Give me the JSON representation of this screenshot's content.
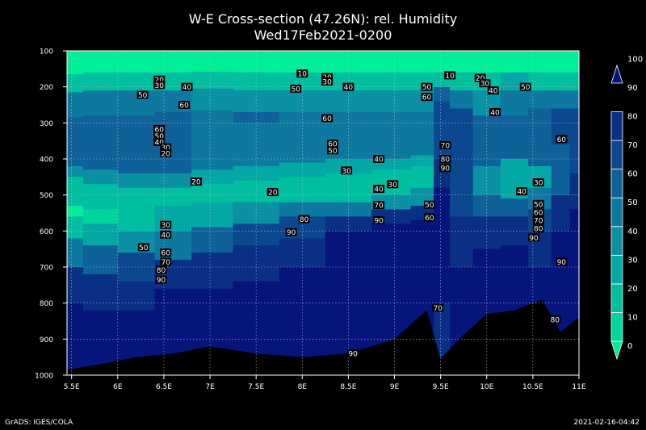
{
  "title_line1": "W-E Cross-section (47.26N): rel. Humidity",
  "title_line2": "Wed17Feb2021-0200",
  "footer_left": "GrADS: IGES/COLA",
  "footer_right": "2021-02-16-04:42",
  "chart_data": {
    "type": "heatmap",
    "title": "W-E Cross-section (47.26N): rel. Humidity",
    "subtitle": "Wed17Feb2021-0200",
    "xlim": [
      5.45,
      11.0
    ],
    "ylim": [
      100,
      1000
    ],
    "y_inverted": true,
    "x_ticks": [
      5.5,
      6,
      6.5,
      7,
      7.5,
      8,
      8.5,
      9,
      9.5,
      10,
      10.5,
      11
    ],
    "x_tick_labels": [
      "5.5E",
      "6E",
      "6.5E",
      "7E",
      "7.5E",
      "8E",
      "8.5E",
      "9E",
      "9.5E",
      "10E",
      "10.5E",
      "11E"
    ],
    "y_ticks": [
      100,
      200,
      300,
      400,
      500,
      600,
      700,
      800,
      900,
      1000
    ],
    "y_tick_labels": [
      "100",
      "200",
      "300",
      "400",
      "500",
      "600",
      "700",
      "800",
      "900",
      "1000"
    ],
    "grid": true,
    "colorbar": {
      "levels": [
        0,
        10,
        20,
        30,
        40,
        50,
        60,
        70,
        80,
        90,
        100
      ],
      "labels": [
        "0",
        "10",
        "20",
        "30",
        "40",
        "50",
        "60",
        "70",
        "80",
        "90",
        "100"
      ],
      "colors": [
        "#00ee98",
        "#00d69c",
        "#00bfa0",
        "#03a8a4",
        "#0a91a4",
        "#0d79a0",
        "#0e6199",
        "#0c488f",
        "#0a3085",
        "#05157c"
      ]
    },
    "terrain_color": "#000000",
    "columns": [
      {
        "x": 5.45,
        "bands": [
          [
            100,
            165,
            0
          ],
          [
            165,
            215,
            20
          ],
          [
            215,
            285,
            50
          ],
          [
            285,
            420,
            60
          ],
          [
            420,
            450,
            40
          ],
          [
            450,
            530,
            20
          ],
          [
            530,
            560,
            0
          ],
          [
            560,
            620,
            20
          ],
          [
            620,
            700,
            50
          ],
          [
            700,
            800,
            80
          ],
          [
            800,
            985,
            90
          ]
        ],
        "terrain": 985
      },
      {
        "x": 5.8,
        "bands": [
          [
            100,
            160,
            0
          ],
          [
            160,
            210,
            20
          ],
          [
            210,
            280,
            50
          ],
          [
            280,
            430,
            60
          ],
          [
            430,
            470,
            40
          ],
          [
            470,
            540,
            20
          ],
          [
            540,
            580,
            10
          ],
          [
            580,
            640,
            30
          ],
          [
            640,
            720,
            60
          ],
          [
            720,
            820,
            80
          ],
          [
            820,
            970,
            90
          ]
        ],
        "terrain": 970
      },
      {
        "x": 6.2,
        "bands": [
          [
            100,
            160,
            0
          ],
          [
            160,
            210,
            20
          ],
          [
            210,
            280,
            50
          ],
          [
            280,
            440,
            60
          ],
          [
            440,
            480,
            40
          ],
          [
            480,
            540,
            20
          ],
          [
            540,
            600,
            20
          ],
          [
            600,
            660,
            40
          ],
          [
            660,
            740,
            70
          ],
          [
            740,
            820,
            80
          ],
          [
            820,
            950,
            90
          ]
        ],
        "terrain": 950
      },
      {
        "x": 6.6,
        "bands": [
          [
            100,
            160,
            0
          ],
          [
            160,
            210,
            20
          ],
          [
            210,
            270,
            50
          ],
          [
            270,
            440,
            60
          ],
          [
            440,
            480,
            40
          ],
          [
            480,
            530,
            20
          ],
          [
            530,
            600,
            30
          ],
          [
            600,
            680,
            50
          ],
          [
            680,
            760,
            80
          ],
          [
            760,
            940,
            90
          ]
        ],
        "terrain": 940
      },
      {
        "x": 7.0,
        "bands": [
          [
            100,
            158,
            0
          ],
          [
            158,
            205,
            20
          ],
          [
            205,
            265,
            40
          ],
          [
            265,
            430,
            50
          ],
          [
            430,
            470,
            30
          ],
          [
            470,
            520,
            20
          ],
          [
            520,
            590,
            30
          ],
          [
            590,
            660,
            60
          ],
          [
            660,
            760,
            80
          ],
          [
            760,
            920,
            90
          ]
        ],
        "terrain": 920
      },
      {
        "x": 7.5,
        "bands": [
          [
            100,
            160,
            0
          ],
          [
            160,
            210,
            20
          ],
          [
            210,
            270,
            40
          ],
          [
            270,
            300,
            60
          ],
          [
            300,
            420,
            50
          ],
          [
            420,
            460,
            30
          ],
          [
            460,
            520,
            20
          ],
          [
            520,
            580,
            40
          ],
          [
            580,
            640,
            70
          ],
          [
            640,
            740,
            80
          ],
          [
            740,
            940,
            90
          ]
        ],
        "terrain": 940
      },
      {
        "x": 8.0,
        "bands": [
          [
            100,
            160,
            0
          ],
          [
            160,
            210,
            20
          ],
          [
            210,
            270,
            40
          ],
          [
            270,
            410,
            50
          ],
          [
            410,
            450,
            30
          ],
          [
            450,
            520,
            20
          ],
          [
            520,
            560,
            50
          ],
          [
            560,
            620,
            70
          ],
          [
            620,
            700,
            80
          ],
          [
            700,
            950,
            90
          ]
        ],
        "terrain": 950
      },
      {
        "x": 8.5,
        "bands": [
          [
            100,
            160,
            0
          ],
          [
            160,
            210,
            20
          ],
          [
            210,
            270,
            40
          ],
          [
            270,
            400,
            50
          ],
          [
            400,
            440,
            30
          ],
          [
            440,
            520,
            20
          ],
          [
            520,
            560,
            50
          ],
          [
            560,
            600,
            80
          ],
          [
            600,
            680,
            90
          ],
          [
            680,
            940,
            90
          ]
        ],
        "terrain": 940
      },
      {
        "x": 9.0,
        "bands": [
          [
            100,
            160,
            0
          ],
          [
            160,
            210,
            20
          ],
          [
            210,
            270,
            40
          ],
          [
            270,
            400,
            50
          ],
          [
            400,
            430,
            30
          ],
          [
            430,
            500,
            20
          ],
          [
            500,
            540,
            40
          ],
          [
            540,
            580,
            80
          ],
          [
            580,
            900,
            90
          ]
        ],
        "terrain": 900
      },
      {
        "x": 9.35,
        "bands": [
          [
            100,
            160,
            0
          ],
          [
            160,
            210,
            20
          ],
          [
            210,
            270,
            40
          ],
          [
            270,
            390,
            50
          ],
          [
            390,
            420,
            30
          ],
          [
            420,
            480,
            20
          ],
          [
            480,
            530,
            40
          ],
          [
            530,
            570,
            80
          ],
          [
            570,
            820,
            90
          ]
        ],
        "terrain": 820
      },
      {
        "x": 9.5,
        "bands": [
          [
            100,
            160,
            0
          ],
          [
            160,
            200,
            20
          ],
          [
            200,
            240,
            60
          ],
          [
            240,
            400,
            70
          ],
          [
            400,
            480,
            80
          ],
          [
            480,
            800,
            90
          ],
          [
            800,
            950,
            80
          ]
        ],
        "terrain": 955
      },
      {
        "x": 9.7,
        "bands": [
          [
            100,
            160,
            0
          ],
          [
            160,
            210,
            20
          ],
          [
            210,
            260,
            50
          ],
          [
            260,
            420,
            70
          ],
          [
            420,
            560,
            70
          ],
          [
            560,
            700,
            80
          ],
          [
            700,
            900,
            90
          ]
        ],
        "terrain": 900
      },
      {
        "x": 10.0,
        "bands": [
          [
            100,
            160,
            0
          ],
          [
            160,
            210,
            20
          ],
          [
            210,
            280,
            40
          ],
          [
            280,
            420,
            60
          ],
          [
            420,
            500,
            40
          ],
          [
            500,
            560,
            60
          ],
          [
            560,
            650,
            80
          ],
          [
            650,
            830,
            90
          ]
        ],
        "terrain": 830
      },
      {
        "x": 10.3,
        "bands": [
          [
            100,
            160,
            0
          ],
          [
            160,
            210,
            30
          ],
          [
            210,
            280,
            50
          ],
          [
            280,
            400,
            60
          ],
          [
            400,
            510,
            30
          ],
          [
            510,
            560,
            60
          ],
          [
            560,
            640,
            80
          ],
          [
            640,
            820,
            90
          ]
        ],
        "terrain": 820
      },
      {
        "x": 10.6,
        "bands": [
          [
            100,
            160,
            0
          ],
          [
            160,
            210,
            20
          ],
          [
            210,
            260,
            50
          ],
          [
            260,
            420,
            60
          ],
          [
            420,
            480,
            30
          ],
          [
            480,
            540,
            50
          ],
          [
            540,
            600,
            70
          ],
          [
            600,
            700,
            80
          ],
          [
            700,
            790,
            90
          ]
        ],
        "terrain": 790
      },
      {
        "x": 10.8,
        "bands": [
          [
            100,
            160,
            0
          ],
          [
            160,
            210,
            20
          ],
          [
            210,
            260,
            50
          ],
          [
            260,
            360,
            70
          ],
          [
            360,
            500,
            60
          ],
          [
            500,
            600,
            80
          ],
          [
            600,
            880,
            90
          ]
        ],
        "terrain": 880
      },
      {
        "x": 11.0,
        "bands": [
          [
            100,
            160,
            0
          ],
          [
            160,
            210,
            20
          ],
          [
            210,
            260,
            50
          ],
          [
            260,
            440,
            70
          ],
          [
            440,
            540,
            80
          ],
          [
            540,
            840,
            90
          ]
        ],
        "terrain": 840
      }
    ],
    "contour_labels": [
      {
        "x": 6.45,
        "y": 180,
        "text": "20"
      },
      {
        "x": 6.45,
        "y": 195,
        "text": "30"
      },
      {
        "x": 6.75,
        "y": 200,
        "text": "40"
      },
      {
        "x": 6.27,
        "y": 222,
        "text": "50"
      },
      {
        "x": 6.72,
        "y": 250,
        "text": "60"
      },
      {
        "x": 7.93,
        "y": 205,
        "text": "50"
      },
      {
        "x": 8.0,
        "y": 163,
        "text": "10"
      },
      {
        "x": 8.27,
        "y": 173,
        "text": "20"
      },
      {
        "x": 8.27,
        "y": 185,
        "text": "30"
      },
      {
        "x": 8.5,
        "y": 200,
        "text": "40"
      },
      {
        "x": 8.27,
        "y": 287,
        "text": "60"
      },
      {
        "x": 9.35,
        "y": 200,
        "text": "50"
      },
      {
        "x": 9.35,
        "y": 228,
        "text": "60"
      },
      {
        "x": 9.6,
        "y": 168,
        "text": "10"
      },
      {
        "x": 9.93,
        "y": 175,
        "text": "20"
      },
      {
        "x": 9.98,
        "y": 190,
        "text": "30"
      },
      {
        "x": 10.07,
        "y": 210,
        "text": "40"
      },
      {
        "x": 10.42,
        "y": 200,
        "text": "50"
      },
      {
        "x": 10.09,
        "y": 270,
        "text": "40"
      },
      {
        "x": 10.81,
        "y": 345,
        "text": "60"
      },
      {
        "x": 6.45,
        "y": 317,
        "text": "60"
      },
      {
        "x": 6.45,
        "y": 336,
        "text": "50"
      },
      {
        "x": 6.45,
        "y": 353,
        "text": "40"
      },
      {
        "x": 6.52,
        "y": 368,
        "text": "30"
      },
      {
        "x": 6.52,
        "y": 384,
        "text": "20"
      },
      {
        "x": 6.85,
        "y": 463,
        "text": "20"
      },
      {
        "x": 7.68,
        "y": 492,
        "text": "20"
      },
      {
        "x": 8.33,
        "y": 358,
        "text": "60"
      },
      {
        "x": 8.33,
        "y": 376,
        "text": "50"
      },
      {
        "x": 8.48,
        "y": 432,
        "text": "30"
      },
      {
        "x": 8.83,
        "y": 400,
        "text": "40"
      },
      {
        "x": 8.83,
        "y": 483,
        "text": "40"
      },
      {
        "x": 8.98,
        "y": 470,
        "text": "30"
      },
      {
        "x": 8.83,
        "y": 528,
        "text": "70"
      },
      {
        "x": 8.83,
        "y": 570,
        "text": "90"
      },
      {
        "x": 9.38,
        "y": 527,
        "text": "50"
      },
      {
        "x": 9.38,
        "y": 562,
        "text": "60"
      },
      {
        "x": 9.55,
        "y": 362,
        "text": "70"
      },
      {
        "x": 9.55,
        "y": 400,
        "text": "80"
      },
      {
        "x": 9.55,
        "y": 425,
        "text": "90"
      },
      {
        "x": 10.38,
        "y": 490,
        "text": "40"
      },
      {
        "x": 10.56,
        "y": 465,
        "text": "30"
      },
      {
        "x": 10.56,
        "y": 525,
        "text": "50"
      },
      {
        "x": 10.56,
        "y": 548,
        "text": "60"
      },
      {
        "x": 10.56,
        "y": 570,
        "text": "70"
      },
      {
        "x": 10.56,
        "y": 593,
        "text": "80"
      },
      {
        "x": 10.51,
        "y": 618,
        "text": "90"
      },
      {
        "x": 6.52,
        "y": 583,
        "text": "30"
      },
      {
        "x": 6.52,
        "y": 610,
        "text": "40"
      },
      {
        "x": 6.28,
        "y": 645,
        "text": "50"
      },
      {
        "x": 6.52,
        "y": 660,
        "text": "60"
      },
      {
        "x": 6.52,
        "y": 685,
        "text": "70"
      },
      {
        "x": 6.47,
        "y": 708,
        "text": "80"
      },
      {
        "x": 6.47,
        "y": 735,
        "text": "90"
      },
      {
        "x": 8.02,
        "y": 567,
        "text": "80"
      },
      {
        "x": 7.88,
        "y": 603,
        "text": "90"
      },
      {
        "x": 10.81,
        "y": 685,
        "text": "90"
      },
      {
        "x": 9.47,
        "y": 813,
        "text": "70"
      },
      {
        "x": 10.74,
        "y": 845,
        "text": "80"
      },
      {
        "x": 8.55,
        "y": 940,
        "text": "90"
      }
    ]
  }
}
